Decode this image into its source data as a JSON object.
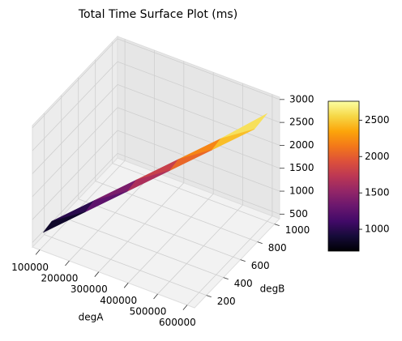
{
  "chart_data": {
    "type": "surface",
    "title": "Total Time Surface Plot (ms)",
    "xlabel": "degA",
    "ylabel": "degB",
    "x": [
      100000,
      100000,
      200000,
      200000,
      300000,
      300000,
      400000,
      400000,
      500000,
      500000,
      600000,
      600000
    ],
    "y": [
      100,
      200,
      250,
      350,
      400,
      500,
      550,
      650,
      700,
      800,
      850,
      1000
    ],
    "z": [
      700,
      750,
      1100,
      1150,
      1500,
      1550,
      1900,
      1950,
      2300,
      2350,
      2700,
      2750
    ],
    "xlim": [
      75000,
      625000
    ],
    "ylim": [
      60,
      1060
    ],
    "zlim": [
      400,
      3050
    ],
    "xticks": [
      100000,
      200000,
      300000,
      400000,
      500000,
      600000
    ],
    "yticks": [
      200,
      400,
      600,
      800,
      1000
    ],
    "zticks": [
      500,
      1000,
      1500,
      2000,
      2500,
      3000
    ],
    "colormap": "inferno",
    "clim": [
      700,
      2760
    ],
    "cticks": [
      1000,
      1500,
      2000,
      2500
    ],
    "grid": true
  }
}
